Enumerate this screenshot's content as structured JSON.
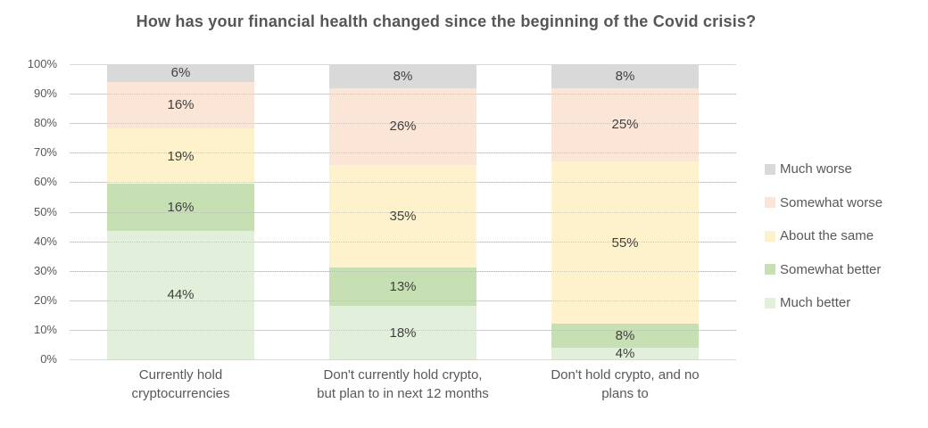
{
  "chart_data": {
    "type": "bar",
    "stacked": true,
    "orientation": "vertical",
    "title": "How has your financial health changed since the beginning of the Covid crisis?",
    "categories": [
      "Currently hold cryptocurrencies",
      "Don't currently hold crypto, but plan to in next 12 months",
      "Don't hold crypto, and no plans to"
    ],
    "category_label_lines": [
      [
        "Currently hold",
        "cryptocurrencies"
      ],
      [
        "Don't currently hold crypto,",
        "but plan to in next 12 months"
      ],
      [
        "Don't hold crypto, and no",
        "plans to"
      ]
    ],
    "series": [
      {
        "name": "Much better",
        "color": "#e2efda",
        "values": [
          44,
          18,
          4
        ]
      },
      {
        "name": "Somewhat better",
        "color": "#c6e0b4",
        "values": [
          16,
          13,
          8
        ]
      },
      {
        "name": "About the same",
        "color": "#fdf2cc",
        "values": [
          19,
          35,
          55
        ]
      },
      {
        "name": "Somewhat worse",
        "color": "#fbe5d6",
        "values": [
          16,
          26,
          25
        ]
      },
      {
        "name": "Much worse",
        "color": "#d9d9d9",
        "values": [
          6,
          8,
          8
        ]
      }
    ],
    "data_label_suffix": "%",
    "y_ticks": [
      "0%",
      "10%",
      "20%",
      "30%",
      "40%",
      "50%",
      "60%",
      "70%",
      "80%",
      "90%",
      "100%"
    ],
    "ylim": [
      0,
      100
    ],
    "grid": true,
    "legend": {
      "position": "right",
      "entries": [
        {
          "label": "Much worse",
          "color": "#d9d9d9"
        },
        {
          "label": "Somewhat worse",
          "color": "#fbe5d6"
        },
        {
          "label": "About the same",
          "color": "#fdf2cc"
        },
        {
          "label": "Somewhat better",
          "color": "#c6e0b4"
        },
        {
          "label": "Much better",
          "color": "#e2efda"
        }
      ]
    },
    "style": {
      "gridline_color": "#d9d9d9",
      "title_color": "#565656",
      "axis_text_color": "#595959",
      "data_label_color": "#404040"
    }
  }
}
